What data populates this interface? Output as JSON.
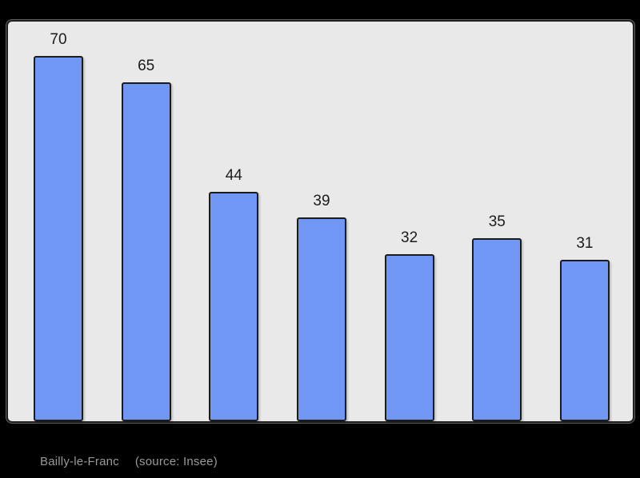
{
  "window": {
    "background": "#000000"
  },
  "chart_card": {
    "background": "#e9e9e9",
    "border_color": "#1f1f1f"
  },
  "chart_data": {
    "type": "bar",
    "title": "",
    "xlabel": "",
    "ylabel": "",
    "categories": [],
    "values": [
      70,
      65,
      44,
      39,
      32,
      35,
      31
    ],
    "bar_labels": [
      "70",
      "65",
      "44",
      "39",
      "32",
      "35",
      "31"
    ],
    "ylim": [
      0,
      76.6
    ],
    "grid": false,
    "legend": false,
    "bar_color": "#7197f4",
    "bar_border_color": "#1c1c1c",
    "value_label_color": "#1b1b1b"
  },
  "caption": {
    "location": "Bailly-le-Franc",
    "source": "(source: Insee)"
  }
}
